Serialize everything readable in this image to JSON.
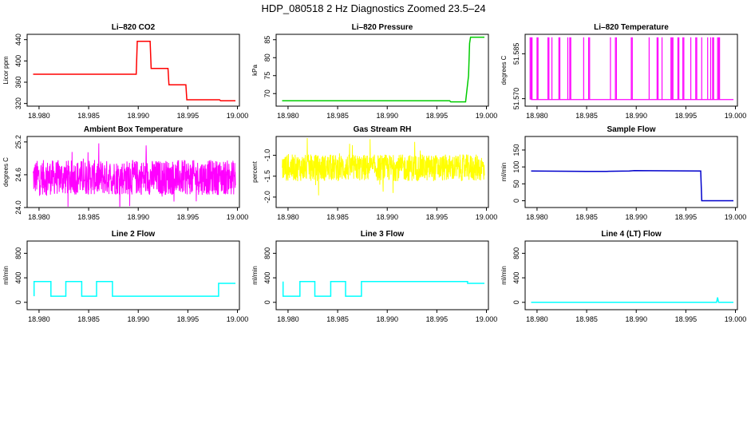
{
  "page_title": "HDP_080518  2 Hz Diagnostics Zoomed 23.5–24",
  "line_color_default": "#000000",
  "chart_data": [
    {
      "type": "line",
      "title": "Li–820 CO2",
      "xlabel": "",
      "ylabel": "Licor ppm",
      "xlim": [
        18.9788,
        19.0002
      ],
      "ylim": [
        315,
        450
      ],
      "xticks": [
        "18.980",
        "18.985",
        "18.990",
        "18.995",
        "19.000"
      ],
      "xtick_values": [
        18.98,
        18.985,
        18.99,
        18.995,
        19.0
      ],
      "yticks": [
        "320",
        "360",
        "400",
        "440"
      ],
      "ytick_values": [
        320,
        360,
        400,
        440
      ],
      "series": [
        {
          "color": "#ff0000",
          "x": [
            18.9794,
            18.9898,
            18.9899,
            18.9912,
            18.9913,
            18.993,
            18.9931,
            18.9948,
            18.9949,
            18.9982,
            18.9983,
            18.9998
          ],
          "y": [
            375,
            375,
            437,
            437,
            386,
            386,
            355,
            355,
            327,
            327,
            325,
            325
          ]
        }
      ]
    },
    {
      "type": "line",
      "title": "Li–820 Pressure",
      "xlabel": "",
      "ylabel": "kPa",
      "xlim": [
        18.9788,
        19.0002
      ],
      "ylim": [
        66.5,
        86.5
      ],
      "xticks": [
        "18.980",
        "18.985",
        "18.990",
        "18.995",
        "19.000"
      ],
      "xtick_values": [
        18.98,
        18.985,
        18.99,
        18.995,
        19.0
      ],
      "yticks": [
        "70",
        "75",
        "80",
        "85"
      ],
      "ytick_values": [
        70,
        75,
        80,
        85
      ],
      "series": [
        {
          "color": "#00cc00",
          "x": [
            18.9794,
            18.9963,
            18.9964,
            18.9979,
            18.9982,
            18.9983,
            18.9984,
            18.9998
          ],
          "y": [
            68.0,
            68.0,
            67.7,
            67.7,
            75,
            84,
            85.7,
            85.7
          ]
        }
      ]
    },
    {
      "type": "line",
      "title": "Li–820 Temperature",
      "xlabel": "",
      "ylabel": "degrees C",
      "xlim": [
        18.9788,
        19.0002
      ],
      "ylim": [
        51.5675,
        51.5915
      ],
      "xticks": [
        "18.980",
        "18.985",
        "18.990",
        "18.995",
        "19.000"
      ],
      "xtick_values": [
        18.98,
        18.985,
        18.99,
        18.995,
        19.0
      ],
      "yticks": [
        "51.570",
        "51.585"
      ],
      "ytick_values": [
        51.57,
        51.585
      ],
      "baseline": 51.5697,
      "peak": 51.5905,
      "series": [
        {
          "color": "#ff00ff",
          "spikes": [
            18.9793,
            18.9794,
            18.9795,
            18.98,
            18.9801,
            18.9811,
            18.9812,
            18.9815,
            18.9822,
            18.9823,
            18.9831,
            18.9833,
            18.9834,
            18.9847,
            18.9852,
            18.9853,
            18.9874,
            18.9879,
            18.988,
            18.9895,
            18.9896,
            18.9913,
            18.9921,
            18.9922,
            18.9926,
            18.9935,
            18.9936,
            18.9937,
            18.9942,
            18.9943,
            18.9947,
            18.9948,
            18.9955,
            18.996,
            18.9961,
            18.9966,
            18.9972,
            18.9975,
            18.9977,
            18.9978,
            18.9982,
            18.9983,
            18.9984
          ]
        }
      ]
    },
    {
      "type": "line",
      "title": "Ambient Box Temperature",
      "xlabel": "",
      "ylabel": "degrees C",
      "xlim": [
        18.9788,
        19.0002
      ],
      "ylim": [
        24.0,
        25.3
      ],
      "xticks": [
        "18.980",
        "18.985",
        "18.990",
        "18.995",
        "19.000"
      ],
      "xtick_values": [
        18.98,
        18.985,
        18.99,
        18.995,
        19.0
      ],
      "yticks": [
        "24.0",
        "24.6",
        "25.2"
      ],
      "ytick_values": [
        24.0,
        24.6,
        25.2
      ],
      "noise": {
        "center": 24.55,
        "amp": 0.32,
        "spike_amp": 0.68,
        "x_start": 18.9794,
        "x_end": 18.9998
      },
      "series": [
        {
          "color": "#ff00ff"
        }
      ]
    },
    {
      "type": "line",
      "title": "Gas Stream RH",
      "xlabel": "",
      "ylabel": "percent",
      "xlim": [
        18.9788,
        19.0002
      ],
      "ylim": [
        -2.25,
        -0.55
      ],
      "xticks": [
        "18.980",
        "18.985",
        "18.990",
        "18.995",
        "19.000"
      ],
      "xtick_values": [
        18.98,
        18.985,
        18.99,
        18.995,
        19.0
      ],
      "yticks": [
        "-2.0",
        "-1.5",
        "-1.0"
      ],
      "ytick_values": [
        -2.0,
        -1.5,
        -1.0
      ],
      "noise": {
        "center": -1.3,
        "amp": 0.32,
        "spike_amp": 0.75,
        "x_start": 18.9794,
        "x_end": 18.9998
      },
      "series": [
        {
          "color": "#ffff00"
        }
      ]
    },
    {
      "type": "line",
      "title": "Sample Flow",
      "xlabel": "",
      "ylabel": "ml/min",
      "xlim": [
        18.9788,
        19.0002
      ],
      "ylim": [
        -20,
        190
      ],
      "xticks": [
        "18.980",
        "18.985",
        "18.990",
        "18.995",
        "19.000"
      ],
      "xtick_values": [
        18.98,
        18.985,
        18.99,
        18.995,
        19.0
      ],
      "yticks": [
        "0",
        "50",
        "100",
        "150"
      ],
      "ytick_values": [
        0,
        50,
        100,
        150
      ],
      "series": [
        {
          "color": "#0000cc",
          "x": [
            18.9794,
            18.985,
            18.987,
            18.9893,
            18.9898,
            18.9965,
            18.9966,
            18.9998
          ],
          "y": [
            88,
            87,
            87,
            88,
            89,
            88,
            0,
            0
          ]
        }
      ]
    },
    {
      "type": "line",
      "title": "Line 2 Flow",
      "xlabel": "",
      "ylabel": "ml/min",
      "xlim": [
        18.9788,
        19.0002
      ],
      "ylim": [
        -120,
        1000
      ],
      "xticks": [
        "18.980",
        "18.985",
        "18.990",
        "18.995",
        "19.000"
      ],
      "xtick_values": [
        18.98,
        18.985,
        18.99,
        18.995,
        19.0
      ],
      "yticks": [
        "0",
        "400",
        "800"
      ],
      "ytick_values": [
        0,
        400,
        800
      ],
      "series": [
        {
          "color": "#00ffff",
          "x": [
            18.9795,
            18.9795,
            18.9812,
            18.9812,
            18.9827,
            18.9827,
            18.9843,
            18.9843,
            18.9858,
            18.9858,
            18.9874,
            18.9874,
            18.9981,
            18.9981,
            18.9998
          ],
          "y": [
            100,
            340,
            340,
            100,
            100,
            340,
            340,
            100,
            100,
            340,
            340,
            100,
            100,
            310,
            310
          ]
        }
      ]
    },
    {
      "type": "line",
      "title": "Line 3 Flow",
      "xlabel": "",
      "ylabel": "ml/min",
      "xlim": [
        18.9788,
        19.0002
      ],
      "ylim": [
        -120,
        1000
      ],
      "xticks": [
        "18.980",
        "18.985",
        "18.990",
        "18.995",
        "19.000"
      ],
      "xtick_values": [
        18.98,
        18.985,
        18.99,
        18.995,
        19.0
      ],
      "yticks": [
        "0",
        "400",
        "800"
      ],
      "ytick_values": [
        0,
        400,
        800
      ],
      "series": [
        {
          "color": "#00ffff",
          "x": [
            18.9795,
            18.9795,
            18.9812,
            18.9812,
            18.9827,
            18.9827,
            18.9843,
            18.9843,
            18.9858,
            18.9858,
            18.9874,
            18.9874,
            18.9981,
            18.9981,
            18.9998
          ],
          "y": [
            340,
            100,
            100,
            340,
            340,
            100,
            100,
            340,
            340,
            100,
            100,
            340,
            340,
            310,
            310
          ]
        }
      ]
    },
    {
      "type": "line",
      "title": "Line 4 (LT) Flow",
      "xlabel": "",
      "ylabel": "ml/min",
      "xlim": [
        18.9788,
        19.0002
      ],
      "ylim": [
        -120,
        1000
      ],
      "xticks": [
        "18.980",
        "18.985",
        "18.990",
        "18.995",
        "19.000"
      ],
      "xtick_values": [
        18.98,
        18.985,
        18.99,
        18.995,
        19.0
      ],
      "yticks": [
        "0",
        "400",
        "800"
      ],
      "ytick_values": [
        0,
        400,
        800
      ],
      "series": [
        {
          "color": "#00ffff",
          "x": [
            18.9794,
            18.9981,
            18.9982,
            18.9983,
            18.9984,
            18.9998
          ],
          "y": [
            0,
            0,
            80,
            0,
            0,
            0
          ]
        }
      ]
    }
  ]
}
